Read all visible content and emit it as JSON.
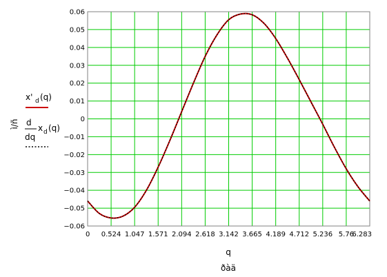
{
  "chart_data": {
    "type": "line",
    "x_ticks": [
      "0",
      "0.524",
      "1.047",
      "1.571",
      "2.094",
      "2.618",
      "3.142",
      "3.665",
      "4.189",
      "4.712",
      "5.236",
      "5.76",
      "6.283"
    ],
    "y_ticks": [
      "0.06",
      "0.05",
      "0.04",
      "0.03",
      "0.02",
      "0.01",
      "0",
      "−0.01",
      "−0.02",
      "−0.03",
      "−0.04",
      "−0.05",
      "−0.06"
    ],
    "xlim": [
      0,
      6.283
    ],
    "ylim": [
      -0.06,
      0.06
    ],
    "grid": true,
    "x_var": "q",
    "x_unit": "ðàä",
    "y_unit": "ì/ñ",
    "legend": [
      {
        "main": "x'",
        "sub": "d",
        "arg": "(q)"
      },
      {
        "num": "d",
        "den": "dq",
        "main": "x",
        "sub": "d",
        "arg": "(q)"
      }
    ],
    "series": [
      {
        "color": "#cc0000",
        "x": [
          0,
          0.262,
          0.524,
          0.785,
          1.047,
          1.309,
          1.571,
          1.833,
          2.094,
          2.356,
          2.618,
          2.88,
          3.142,
          3.403,
          3.665,
          3.927,
          4.189,
          4.451,
          4.712,
          4.974,
          5.236,
          5.498,
          5.76,
          6.021,
          6.283
        ],
        "y": [
          -0.046,
          -0.053,
          -0.0555,
          -0.0545,
          -0.0495,
          -0.04,
          -0.027,
          -0.012,
          0.004,
          0.02,
          0.035,
          0.047,
          0.0555,
          0.0587,
          0.0583,
          0.0535,
          0.045,
          0.034,
          0.022,
          0.0095,
          -0.003,
          -0.016,
          -0.028,
          -0.038,
          -0.046
        ]
      },
      {
        "color": "#000000",
        "x": [
          0,
          0.262,
          0.524,
          0.785,
          1.047,
          1.309,
          1.571,
          1.833,
          2.094,
          2.356,
          2.618,
          2.88,
          3.142,
          3.403,
          3.665,
          3.927,
          4.189,
          4.451,
          4.712,
          4.974,
          5.236,
          5.498,
          5.76,
          6.021,
          6.283
        ],
        "y": [
          -0.046,
          -0.053,
          -0.0555,
          -0.0545,
          -0.0495,
          -0.04,
          -0.027,
          -0.012,
          0.004,
          0.02,
          0.035,
          0.047,
          0.0555,
          0.0587,
          0.0583,
          0.0535,
          0.045,
          0.034,
          0.022,
          0.0095,
          -0.003,
          -0.016,
          -0.028,
          -0.038,
          -0.046
        ]
      }
    ]
  }
}
